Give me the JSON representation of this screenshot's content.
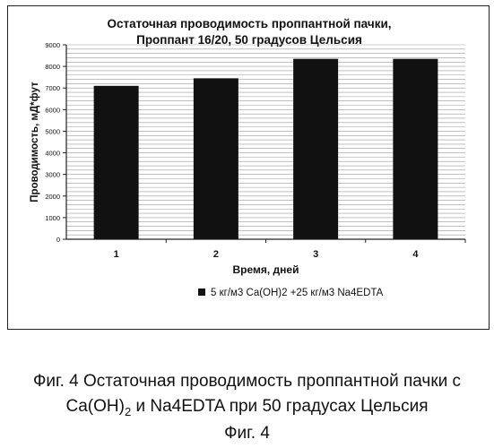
{
  "chart_data": {
    "type": "bar",
    "title": "Остаточная проводимость проппантной пачки,",
    "subtitle": "Проппант 16/20, 50 градусов Цельсия",
    "xlabel": "Время, дней",
    "ylabel": "Проводимость, мД*фут",
    "categories": [
      "1",
      "2",
      "3",
      "4"
    ],
    "series": [
      {
        "name": "5 кг/м3 Ca(OH)2 +25 кг/м3 Na4EDTA",
        "values": [
          7100,
          7450,
          8350,
          8350
        ]
      }
    ],
    "ylim": [
      0,
      9000
    ],
    "yticks": [
      "0",
      "1000",
      "2000",
      "3000",
      "4000",
      "5000",
      "6000",
      "7000",
      "8000",
      "9000"
    ],
    "grid": true,
    "legend_position": "bottom",
    "bar_color": "#111111"
  },
  "caption": {
    "line1": "Фиг. 4 Остаточная проводимость проппантной пачки с",
    "line2_part1": "Ca(OH)",
    "line2_sub": "2",
    "line2_part2": " и Na4EDTA при 50 градусах Цельсия",
    "line3": "Фиг. 4"
  }
}
